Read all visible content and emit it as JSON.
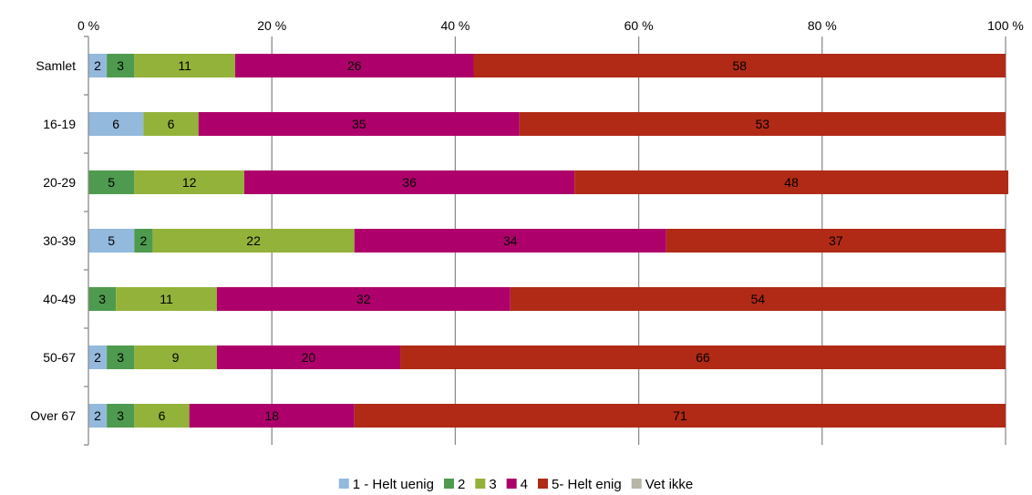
{
  "chart_data": {
    "type": "bar",
    "orientation": "horizontal",
    "stacked": true,
    "percent_axis": true,
    "title": "",
    "xlabel": "",
    "ylabel": "",
    "xlim": [
      0,
      100
    ],
    "x_ticks": [
      "0 %",
      "20 %",
      "40 %",
      "60 %",
      "80 %",
      "100 %"
    ],
    "x_tick_values": [
      0,
      20,
      40,
      60,
      80,
      100
    ],
    "x_axis_position": "top",
    "grid": "vertical",
    "legend_position": "bottom",
    "categories": [
      "Samlet",
      "16-19",
      "20-29",
      "30-39",
      "40-49",
      "50-67",
      "Over 67"
    ],
    "series": [
      {
        "name": "1 - Helt uenig",
        "color": "#93B9DC",
        "values": [
          2,
          6,
          0,
          5,
          0,
          2,
          2
        ]
      },
      {
        "name": "2",
        "color": "#4E9A4E",
        "values": [
          3,
          0,
          5,
          2,
          3,
          3,
          3
        ]
      },
      {
        "name": "3",
        "color": "#93B23A",
        "values": [
          11,
          6,
          12,
          22,
          11,
          9,
          6
        ]
      },
      {
        "name": "4",
        "color": "#AE006A",
        "values": [
          26,
          35,
          36,
          34,
          32,
          20,
          18
        ]
      },
      {
        "name": "5- Helt enig",
        "color": "#B02A16",
        "values": [
          58,
          53,
          48,
          37,
          54,
          66,
          71
        ]
      },
      {
        "name": "Vet ikke",
        "color": "#B7B6A6",
        "values": [
          0,
          0,
          0,
          0,
          0,
          0,
          0
        ]
      }
    ]
  }
}
